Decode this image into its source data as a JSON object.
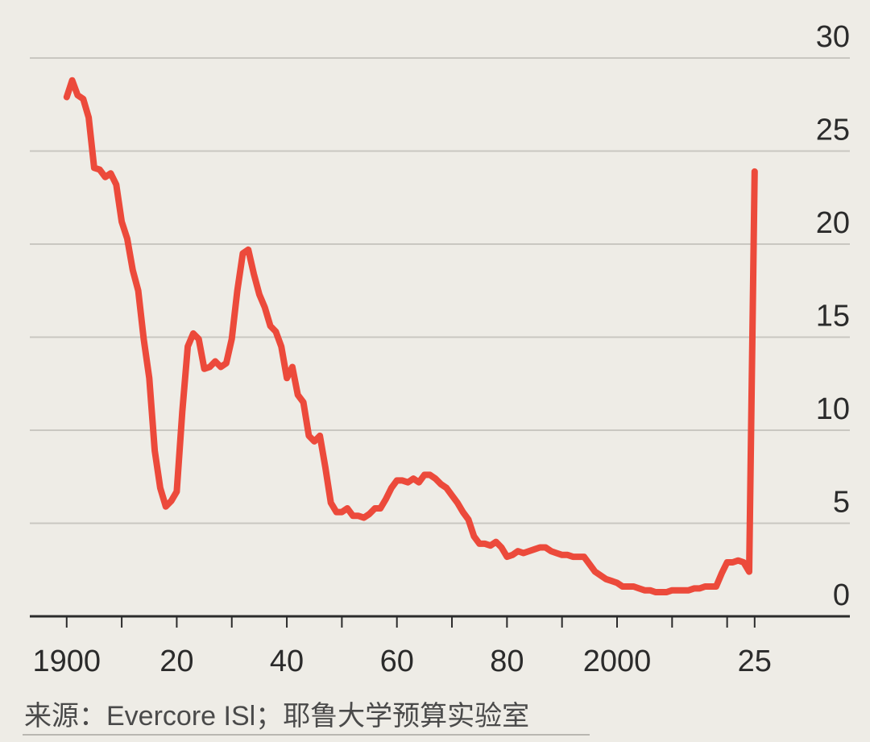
{
  "chart_data": {
    "type": "line",
    "x": [
      1900,
      1901,
      1902,
      1903,
      1904,
      1905,
      1906,
      1907,
      1908,
      1909,
      1910,
      1911,
      1912,
      1913,
      1914,
      1915,
      1916,
      1917,
      1918,
      1919,
      1920,
      1921,
      1922,
      1923,
      1924,
      1925,
      1926,
      1927,
      1928,
      1929,
      1930,
      1931,
      1932,
      1933,
      1934,
      1935,
      1936,
      1937,
      1938,
      1939,
      1940,
      1941,
      1942,
      1943,
      1944,
      1945,
      1946,
      1947,
      1948,
      1949,
      1950,
      1951,
      1952,
      1953,
      1954,
      1955,
      1956,
      1957,
      1958,
      1959,
      1960,
      1961,
      1962,
      1963,
      1964,
      1965,
      1966,
      1967,
      1968,
      1969,
      1970,
      1971,
      1972,
      1973,
      1974,
      1975,
      1976,
      1977,
      1978,
      1979,
      1980,
      1981,
      1982,
      1983,
      1984,
      1985,
      1986,
      1987,
      1988,
      1989,
      1990,
      1991,
      1992,
      1993,
      1994,
      1995,
      1996,
      1997,
      1998,
      1999,
      2000,
      2001,
      2002,
      2003,
      2004,
      2005,
      2006,
      2007,
      2008,
      2009,
      2010,
      2011,
      2012,
      2013,
      2014,
      2015,
      2016,
      2017,
      2018,
      2019,
      2020,
      2021,
      2022,
      2023,
      2024,
      2025
    ],
    "series": [
      {
        "color": "#ec4a3b",
        "values": [
          27.9,
          28.8,
          28.0,
          27.8,
          26.8,
          24.1,
          24.0,
          23.6,
          23.8,
          23.2,
          21.2,
          20.3,
          18.6,
          17.5,
          14.9,
          12.8,
          8.9,
          6.9,
          5.9,
          6.2,
          6.7,
          11.0,
          14.5,
          15.2,
          14.9,
          13.3,
          13.4,
          13.7,
          13.4,
          13.6,
          14.9,
          17.5,
          19.5,
          19.7,
          18.4,
          17.3,
          16.6,
          15.6,
          15.3,
          14.5,
          12.8,
          13.4,
          11.9,
          11.5,
          9.7,
          9.4,
          9.7,
          8.0,
          6.1,
          5.6,
          5.6,
          5.8,
          5.4,
          5.4,
          5.3,
          5.5,
          5.8,
          5.8,
          6.3,
          6.9,
          7.3,
          7.3,
          7.2,
          7.4,
          7.2,
          7.6,
          7.6,
          7.4,
          7.1,
          6.9,
          6.5,
          6.1,
          5.6,
          5.2,
          4.3,
          3.9,
          3.9,
          3.8,
          4.0,
          3.7,
          3.2,
          3.3,
          3.5,
          3.4,
          3.5,
          3.6,
          3.7,
          3.7,
          3.5,
          3.4,
          3.3,
          3.3,
          3.2,
          3.2,
          3.2,
          2.8,
          2.4,
          2.2,
          2.0,
          1.9,
          1.8,
          1.6,
          1.6,
          1.6,
          1.5,
          1.4,
          1.4,
          1.3,
          1.3,
          1.3,
          1.4,
          1.4,
          1.4,
          1.4,
          1.5,
          1.5,
          1.6,
          1.6,
          1.6,
          2.3,
          2.9,
          2.9,
          3.0,
          2.9,
          2.4,
          23.9
        ]
      }
    ],
    "xlim": [
      1893.3,
      2042.3
    ],
    "xticks": [
      1900,
      {
        "value": 1920,
        "label": "20"
      },
      {
        "value": 1940,
        "label": "40"
      },
      {
        "value": 1960,
        "label": "60"
      },
      {
        "value": 1980,
        "label": "80"
      },
      2000,
      {
        "value": 2025,
        "label": "25"
      }
    ],
    "xminor_ticks": [
      1910,
      1930,
      1950,
      1970,
      1990,
      2010,
      2020
    ],
    "ylim": [
      0,
      30
    ],
    "yticks": [
      0,
      5,
      10,
      15,
      20,
      25,
      30
    ],
    "grid": true,
    "source": "来源：Evercore ISl；耶鲁大学预算实验室"
  }
}
